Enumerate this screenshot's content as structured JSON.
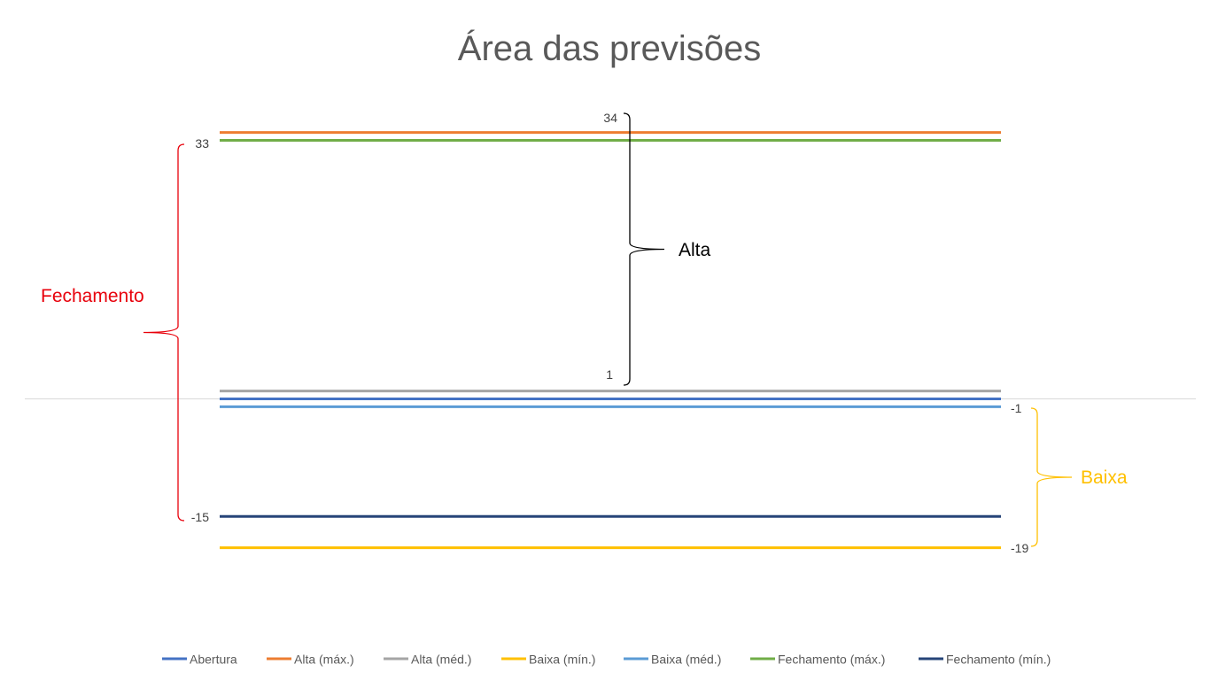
{
  "chart_data": {
    "type": "line",
    "title": "Área das previsões",
    "xlabel": "",
    "ylabel": "",
    "x": [
      0,
      1
    ],
    "ylim": [
      -23,
      37
    ],
    "grid": false,
    "legend_position": "bottom",
    "series": [
      {
        "name": "Abertura",
        "color": "#4472C4",
        "values": [
          0,
          0
        ]
      },
      {
        "name": "Alta (máx.)",
        "color": "#ED7D31",
        "values": [
          34,
          34
        ]
      },
      {
        "name": "Alta (méd.)",
        "color": "#A5A5A5",
        "values": [
          1,
          1
        ]
      },
      {
        "name": "Baixa (mín.)",
        "color": "#FFC000",
        "values": [
          -19,
          -19
        ]
      },
      {
        "name": "Baixa (méd.)",
        "color": "#5B9BD5",
        "values": [
          -1,
          -1
        ]
      },
      {
        "name": "Fechamento (máx.)",
        "color": "#70AD47",
        "values": [
          33,
          33
        ]
      },
      {
        "name": "Fechamento (mín.)",
        "color": "#264478",
        "values": [
          -15,
          -15
        ]
      }
    ],
    "annotations": {
      "alta": {
        "label": "Alta",
        "top": "34",
        "bottom": "1",
        "color": "#000000"
      },
      "fechamento": {
        "label": "Fechamento",
        "top": "33",
        "bottom": "-15",
        "color": "#E8000B"
      },
      "baixa": {
        "label": "Baixa",
        "top": "-1",
        "bottom": "-19",
        "color": "#FFC000"
      }
    }
  }
}
